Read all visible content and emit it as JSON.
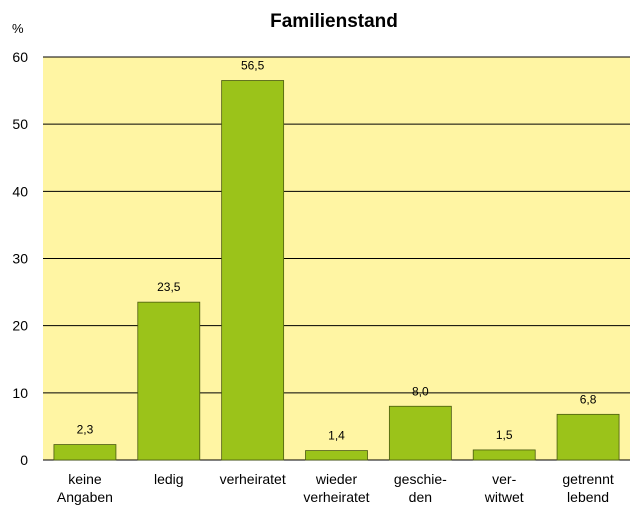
{
  "chart_data": {
    "type": "bar",
    "title": "Familienstand",
    "y_label": "%",
    "categories": [
      "keine\nAngaben",
      "ledig",
      "verheiratet",
      "wieder\nverheiratet",
      "geschie-\nden",
      "ver-\nwitwet",
      "getrennt\nlebend"
    ],
    "values": [
      2.3,
      23.5,
      56.5,
      1.4,
      8.0,
      1.5,
      6.8
    ],
    "value_labels": [
      "2,3",
      "23,5",
      "56,5",
      "1,4",
      "8,0",
      "1,5",
      "6,8"
    ],
    "color": "#9bc31a",
    "background": "#fff5a3",
    "ylim": [
      0,
      60
    ],
    "yticks": [
      0,
      10,
      20,
      30,
      40,
      50,
      60
    ],
    "grid": true
  }
}
